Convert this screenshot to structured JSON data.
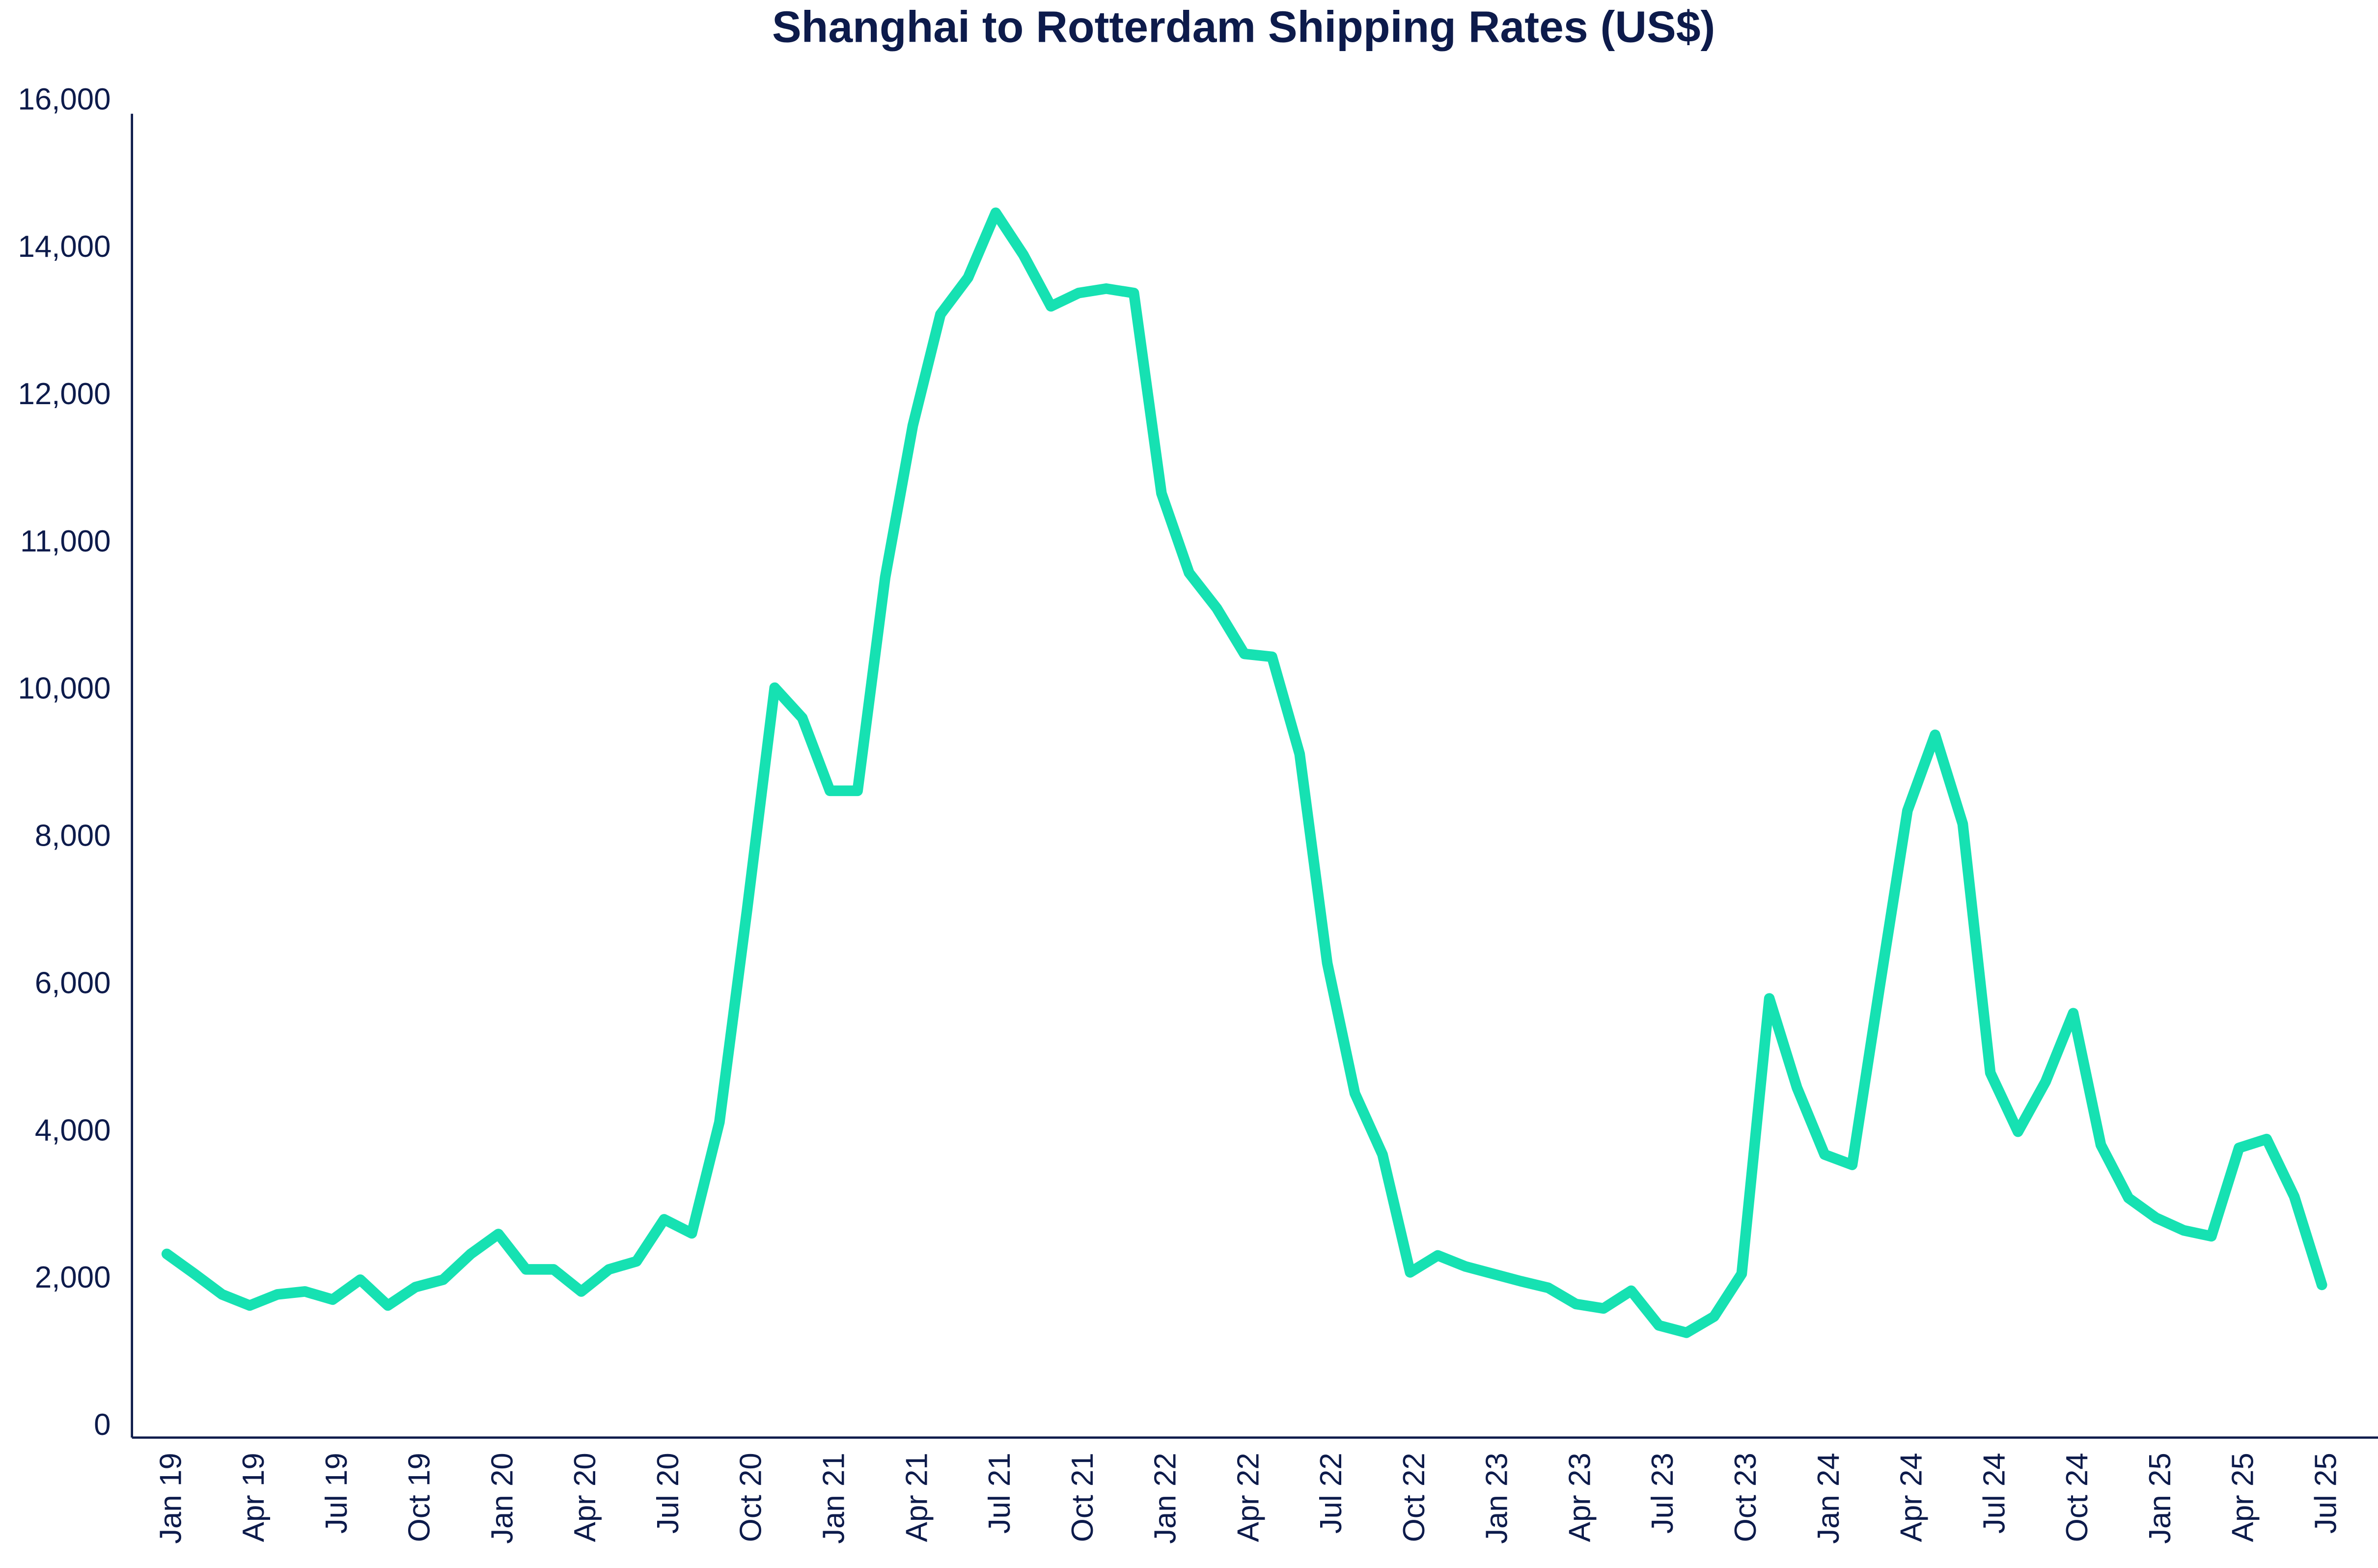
{
  "chart_data": {
    "type": "line",
    "title": "Shanghai to Rotterdam Shipping Rates (US$)",
    "categories": [
      "Jan 19",
      null,
      null,
      "Apr 19",
      null,
      null,
      "Jul 19",
      null,
      null,
      "Oct 19",
      null,
      null,
      "Jan 20",
      null,
      null,
      "Apr 20",
      null,
      null,
      "Jul 20",
      null,
      null,
      "Oct 20",
      null,
      null,
      "Jan 21",
      null,
      null,
      "Apr 21",
      null,
      null,
      "Jul 21",
      null,
      null,
      "Oct 21",
      null,
      null,
      "Jan 22",
      null,
      null,
      "Apr 22",
      null,
      null,
      "Jul 22",
      null,
      null,
      "Oct 22",
      null,
      null,
      "Jan 23",
      null,
      null,
      "Apr 23",
      null,
      null,
      "Jul 23",
      null,
      null,
      "Oct 23",
      null,
      null,
      "Jan 24",
      null,
      null,
      "Apr 24",
      null,
      null,
      "Jul 24",
      null,
      null,
      "Oct 24",
      null,
      null,
      "Jan 25",
      null,
      null,
      "Apr 25",
      null,
      null,
      "Jul 25"
    ],
    "series": [
      {
        "name": "Shanghai to Rotterdam",
        "color": "#16e1b2",
        "values": [
          2350,
          2080,
          1800,
          1650,
          1800,
          1840,
          1730,
          2000,
          1650,
          1900,
          2000,
          2350,
          2620,
          2140,
          2140,
          1840,
          2140,
          2250,
          2820,
          2630,
          4140,
          7020,
          10020,
          9630,
          8640,
          8640,
          10770,
          11800,
          13110,
          13610,
          14490,
          13920,
          13220,
          13400,
          13460,
          13400,
          11340,
          10800,
          10560,
          10250,
          10230,
          9140,
          6300,
          4530,
          3700,
          2100,
          2330,
          2180,
          2080,
          1980,
          1890,
          1670,
          1610,
          1850,
          1380,
          1280,
          1500,
          2080,
          5820,
          4610,
          3700,
          3560,
          5990,
          8370,
          9400,
          8190,
          4810,
          4010,
          4690,
          5620,
          3830,
          3110,
          2840,
          2670,
          2590,
          3790,
          3910,
          3130,
          1930
        ]
      }
    ],
    "ylim": [
      0,
      16000
    ],
    "yticks": [
      0,
      {
        "value": 2000,
        "label": "2,000"
      },
      {
        "value": 4000,
        "label": "4,000"
      },
      {
        "value": 6000,
        "label": "6,000"
      },
      {
        "value": 8000,
        "label": "8,000"
      },
      {
        "value": 10000,
        "label": "10,000"
      },
      {
        "value": 11000,
        "label": "11,000"
      },
      {
        "value": 12000,
        "label": "12,000"
      },
      {
        "value": 14000,
        "label": "14,000"
      },
      {
        "value": 16000,
        "label": "16,000"
      }
    ],
    "grid": false
  }
}
